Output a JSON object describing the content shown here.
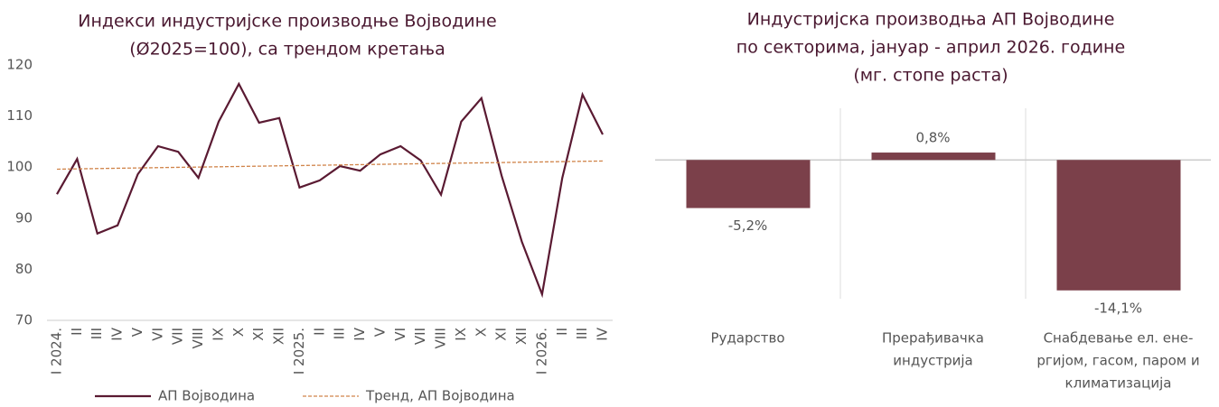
{
  "chart_data": [
    {
      "type": "line",
      "title": [
        "Индекси индустријске производње Војводине",
        "(Ø2025=100), са трендом кретања"
      ],
      "categories": [
        "I 2024.",
        "II",
        "III",
        "IV",
        "V",
        "VI",
        "VII",
        "VIII",
        "IX",
        "X",
        "XI",
        "XII",
        "I 2025.",
        "II",
        "III",
        "IV",
        "V",
        "VI",
        "VII",
        "VIII",
        "IX",
        "X",
        "XI",
        "XII",
        "I 2026.",
        "II",
        "III",
        "IV"
      ],
      "series": [
        {
          "name": "АП Војводина",
          "color": "#5a1a32",
          "style": "solid",
          "values": [
            94.7,
            101.6,
            87.0,
            88.6,
            98.6,
            104.1,
            103.0,
            97.9,
            108.9,
            116.3,
            108.7,
            109.6,
            96.0,
            97.4,
            100.2,
            99.3,
            102.5,
            104.1,
            101.3,
            94.6,
            108.9,
            113.5,
            98.3,
            85.4,
            75.1,
            97.9,
            114.2,
            106.4
          ]
        },
        {
          "name": "Тренд, АП Војводина",
          "color": "#d0844a",
          "style": "dashed",
          "values": [
            99.6,
            99.66,
            99.72,
            99.78,
            99.84,
            99.9,
            99.96,
            100.01,
            100.07,
            100.13,
            100.19,
            100.25,
            100.31,
            100.37,
            100.43,
            100.49,
            100.55,
            100.61,
            100.67,
            100.73,
            100.79,
            100.84,
            100.9,
            100.96,
            101.02,
            101.08,
            101.14,
            101.2
          ]
        }
      ],
      "ylim": [
        70,
        120
      ],
      "yticks": [
        70,
        80,
        90,
        100,
        110,
        120
      ]
    },
    {
      "type": "bar",
      "title": [
        "Индустријска производња АП Војводине",
        "по секторима, јануар - април 2026. године",
        "(мг. стопе раста)"
      ],
      "categories": [
        [
          "Рударство"
        ],
        [
          "Прерађивачка",
          "индустрија"
        ],
        [
          "Снабдевање ел. ене-",
          "ргијом, гасом, паром и",
          "климатизација"
        ]
      ],
      "values": [
        -5.2,
        0.8,
        -14.1
      ],
      "value_labels": [
        "-5,2%",
        "0,8%",
        "-14,1%"
      ],
      "color": "#7b404a",
      "ylim": [
        -15,
        5
      ]
    }
  ]
}
